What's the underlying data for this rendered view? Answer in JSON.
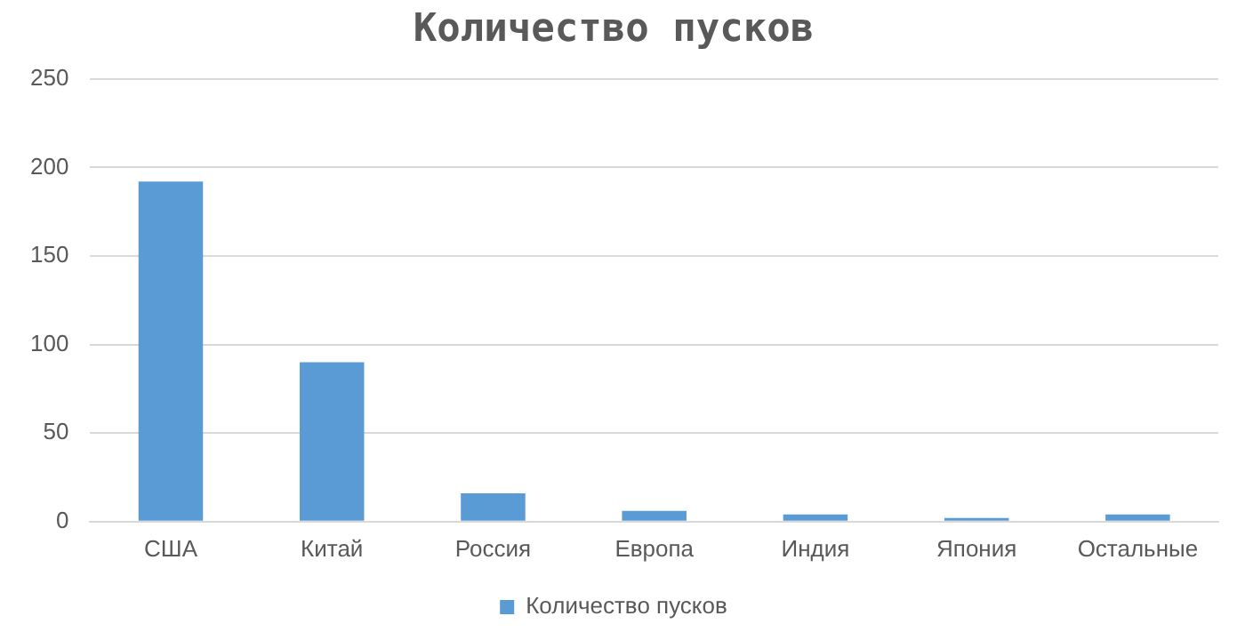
{
  "chart_data": {
    "type": "bar",
    "title": "Количество пусков",
    "categories": [
      "США",
      "Китай",
      "Россия",
      "Европа",
      "Индия",
      "Япония",
      "Остальные"
    ],
    "series": [
      {
        "name": "Количество пусков",
        "color": "#5b9bd5",
        "values": [
          192,
          90,
          16,
          6,
          4,
          2,
          4
        ]
      }
    ],
    "ylim": [
      0,
      250
    ],
    "yticks": [
      0,
      50,
      100,
      150,
      200,
      250
    ],
    "grid": "y",
    "legend": "bottom"
  }
}
